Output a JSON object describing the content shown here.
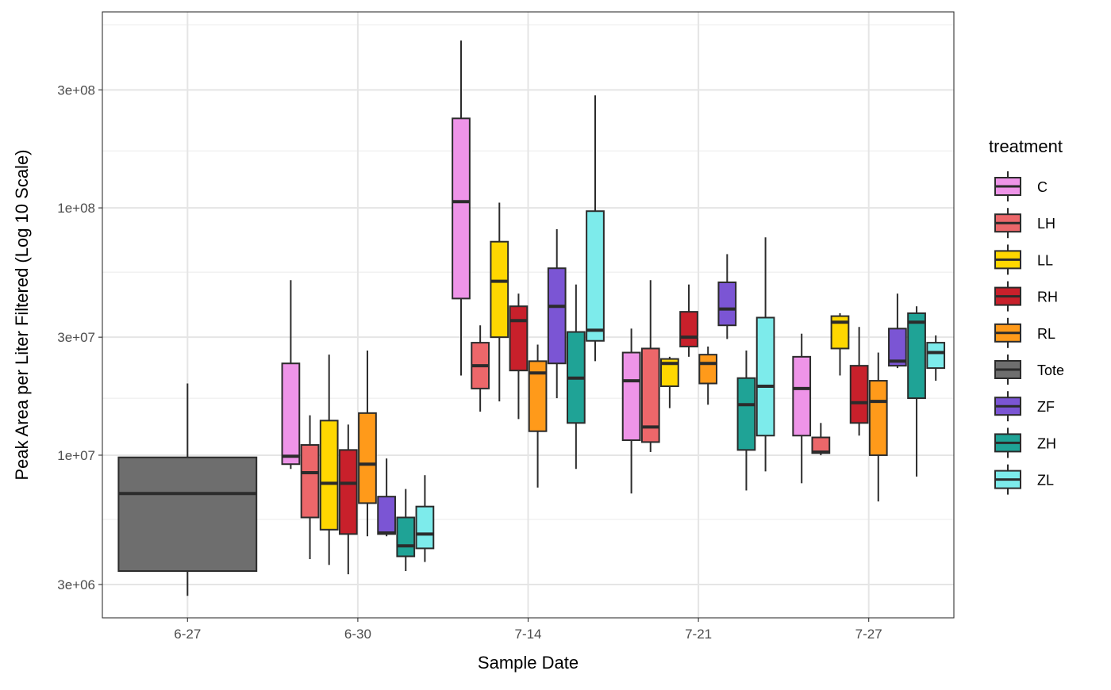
{
  "chart_data": {
    "type": "boxplot",
    "xlabel": "Sample Date",
    "ylabel": "Peak Area per Liter Filtered (Log 10 Scale)",
    "y_scale": "log10",
    "ylim": [
      2200000,
      620000000
    ],
    "y_ticks": [
      3000000,
      10000000,
      30000000,
      100000000,
      300000000
    ],
    "y_tick_labels": [
      "3e+06",
      "1e+07",
      "3e+07",
      "1e+08",
      "3e+08"
    ],
    "y_minor_gridlines": [
      5500000,
      17000000,
      55000000,
      170000000,
      550000000
    ],
    "categories": [
      "6-27",
      "6-30",
      "7-14",
      "7-21",
      "7-27"
    ],
    "grid": true,
    "legend": {
      "title": "treatment",
      "position": "right",
      "items": [
        "C",
        "LH",
        "LL",
        "RH",
        "RL",
        "Tote",
        "ZF",
        "ZH",
        "ZL"
      ]
    },
    "colors": {
      "C": "#EE94E8",
      "LH": "#EC676A",
      "LL": "#FFD700",
      "RH": "#C8202B",
      "RL": "#FF9A1A",
      "Tote": "#6E6E6E",
      "ZF": "#7B55D4",
      "ZH": "#1FA396",
      "ZL": "#7DEBEB"
    },
    "series": [
      {
        "name": "Tote",
        "category": "6-27",
        "min": 2700000,
        "q1": 3400000,
        "median": 7000000,
        "q3": 9800000,
        "max": 19500000
      },
      {
        "name": "C",
        "category": "6-30",
        "min": 8800000,
        "q1": 9200000,
        "median": 9900000,
        "q3": 23500000,
        "max": 51000000
      },
      {
        "name": "LH",
        "category": "6-30",
        "min": 3800000,
        "q1": 5600000,
        "median": 8500000,
        "q3": 11000000,
        "max": 14500000
      },
      {
        "name": "LL",
        "category": "6-30",
        "min": 3600000,
        "q1": 5000000,
        "median": 7700000,
        "q3": 13800000,
        "max": 25500000
      },
      {
        "name": "RH",
        "category": "6-30",
        "min": 3300000,
        "q1": 4800000,
        "median": 7700000,
        "q3": 10500000,
        "max": 13300000
      },
      {
        "name": "RL",
        "category": "6-30",
        "min": 4700000,
        "q1": 6400000,
        "median": 9200000,
        "q3": 14800000,
        "max": 26500000
      },
      {
        "name": "ZF",
        "category": "6-30",
        "min": 4700000,
        "q1": 4800000,
        "median": 4850000,
        "q3": 6800000,
        "max": 9700000
      },
      {
        "name": "ZH",
        "category": "6-30",
        "min": 3400000,
        "q1": 3900000,
        "median": 4300000,
        "q3": 5600000,
        "max": 7300000
      },
      {
        "name": "ZL",
        "category": "6-30",
        "min": 3700000,
        "q1": 4200000,
        "median": 4800000,
        "q3": 6200000,
        "max": 8300000
      },
      {
        "name": "C",
        "category": "7-14",
        "min": 21000000,
        "q1": 43000000,
        "median": 106000000,
        "q3": 230000000,
        "max": 475000000
      },
      {
        "name": "LH",
        "category": "7-14",
        "min": 15000000,
        "q1": 18600000,
        "median": 23000000,
        "q3": 28500000,
        "max": 33500000
      },
      {
        "name": "LL",
        "category": "7-14",
        "min": 16500000,
        "q1": 30000000,
        "median": 50500000,
        "q3": 73000000,
        "max": 105000000
      },
      {
        "name": "RH",
        "category": "7-14",
        "min": 14000000,
        "q1": 22000000,
        "median": 35000000,
        "q3": 40000000,
        "max": 45000000
      },
      {
        "name": "RL",
        "category": "7-14",
        "min": 7400000,
        "q1": 12500000,
        "median": 21500000,
        "q3": 24000000,
        "max": 28000000
      },
      {
        "name": "ZF",
        "category": "7-14",
        "min": 17000000,
        "q1": 23500000,
        "median": 40000000,
        "q3": 57000000,
        "max": 82000000
      },
      {
        "name": "ZH",
        "category": "7-14",
        "min": 8800000,
        "q1": 13500000,
        "median": 20500000,
        "q3": 31500000,
        "max": 49000000
      },
      {
        "name": "ZL",
        "category": "7-14",
        "min": 24000000,
        "q1": 29000000,
        "median": 32000000,
        "q3": 97000000,
        "max": 285000000
      },
      {
        "name": "C",
        "category": "7-21",
        "min": 7000000,
        "q1": 11500000,
        "median": 20000000,
        "q3": 26000000,
        "max": 32500000
      },
      {
        "name": "LH",
        "category": "7-21",
        "min": 10300000,
        "q1": 11300000,
        "median": 13000000,
        "q3": 27000000,
        "max": 51000000
      },
      {
        "name": "LL",
        "category": "7-21",
        "min": 15500000,
        "q1": 19000000,
        "median": 23500000,
        "q3": 24500000,
        "max": 25000000
      },
      {
        "name": "RH",
        "category": "7-21",
        "min": 25000000,
        "q1": 27500000,
        "median": 30000000,
        "q3": 38000000,
        "max": 49000000
      },
      {
        "name": "RL",
        "category": "7-21",
        "min": 16000000,
        "q1": 19500000,
        "median": 23500000,
        "q3": 25500000,
        "max": 27500000
      },
      {
        "name": "ZF",
        "category": "7-21",
        "min": 29500000,
        "q1": 33500000,
        "median": 39000000,
        "q3": 50000000,
        "max": 65000000
      },
      {
        "name": "ZH",
        "category": "7-21",
        "min": 7200000,
        "q1": 10500000,
        "median": 16000000,
        "q3": 20500000,
        "max": 26500000
      },
      {
        "name": "ZL",
        "category": "7-21",
        "min": 8600000,
        "q1": 12000000,
        "median": 19000000,
        "q3": 36000000,
        "max": 76000000
      },
      {
        "name": "C",
        "category": "7-27",
        "min": 7700000,
        "q1": 12000000,
        "median": 18600000,
        "q3": 25000000,
        "max": 31000000
      },
      {
        "name": "LH",
        "category": "7-27",
        "min": 10000000,
        "q1": 10200000,
        "median": 10300000,
        "q3": 11800000,
        "max": 13500000
      },
      {
        "name": "LL",
        "category": "7-27",
        "min": 21000000,
        "q1": 27000000,
        "median": 34500000,
        "q3": 36500000,
        "max": 37500000
      },
      {
        "name": "RH",
        "category": "7-27",
        "min": 12000000,
        "q1": 13500000,
        "median": 16300000,
        "q3": 23000000,
        "max": 33000000
      },
      {
        "name": "RL",
        "category": "7-27",
        "min": 6500000,
        "q1": 10000000,
        "median": 16500000,
        "q3": 20000000,
        "max": 26000000
      },
      {
        "name": "ZF",
        "category": "7-27",
        "min": 22500000,
        "q1": 23000000,
        "median": 24000000,
        "q3": 32500000,
        "max": 45000000
      },
      {
        "name": "ZH",
        "category": "7-27",
        "min": 8200000,
        "q1": 17000000,
        "median": 34500000,
        "q3": 37500000,
        "max": 40000000
      },
      {
        "name": "ZL",
        "category": "7-27",
        "min": 20000000,
        "q1": 22500000,
        "median": 26000000,
        "q3": 28500000,
        "max": 30500000
      }
    ]
  }
}
